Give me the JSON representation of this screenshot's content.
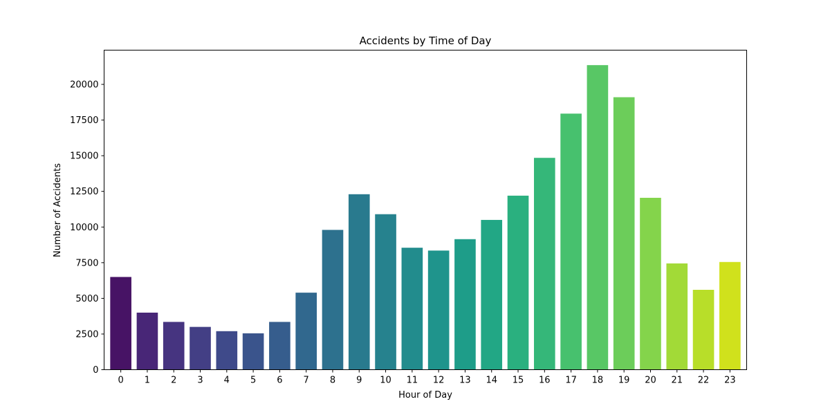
{
  "chart_data": {
    "type": "bar",
    "title": "Accidents by Time of Day",
    "xlabel": "Hour of Day",
    "ylabel": "Number of Accidents",
    "categories": [
      "0",
      "1",
      "2",
      "3",
      "4",
      "5",
      "6",
      "7",
      "8",
      "9",
      "10",
      "11",
      "12",
      "13",
      "14",
      "15",
      "16",
      "17",
      "18",
      "19",
      "20",
      "21",
      "22",
      "23"
    ],
    "values": [
      6500,
      4000,
      3350,
      3000,
      2700,
      2550,
      3350,
      5400,
      9800,
      12300,
      10900,
      8550,
      8350,
      9150,
      10500,
      12200,
      14850,
      17950,
      21350,
      19100,
      12050,
      7450,
      5600,
      7550
    ],
    "ylim": [
      0,
      22400
    ],
    "yticks": [
      0,
      2500,
      5000,
      7500,
      10000,
      12500,
      15000,
      17500,
      20000
    ],
    "ytick_labels": [
      "0",
      "2500",
      "5000",
      "7500",
      "10000",
      "12500",
      "15000",
      "17500",
      "20000"
    ],
    "grid": false,
    "legend": "none",
    "colormap": "viridis",
    "colors": [
      "#471365",
      "#482677",
      "#463480",
      "#433f85",
      "#3f4a8a",
      "#3a548c",
      "#365d8d",
      "#31688e",
      "#2d718e",
      "#297a8e",
      "#26828e",
      "#228c8d",
      "#1f948c",
      "#1e9d89",
      "#22a785",
      "#2ab07f",
      "#35b779",
      "#47c16e",
      "#58c765",
      "#6ccd5a",
      "#84d44b",
      "#a2da37",
      "#b8de29",
      "#d0e11c"
    ]
  }
}
